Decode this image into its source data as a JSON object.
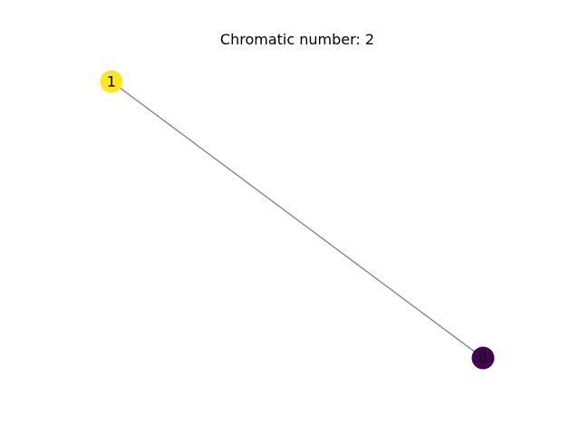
{
  "title": "Chromatic number: 2",
  "graph": {
    "nodes": [
      {
        "id": "0",
        "label": "0",
        "color": "#440154"
      },
      {
        "id": "1",
        "label": "1",
        "color": "#fde725"
      }
    ],
    "edges": [
      {
        "source": "1",
        "target": "0",
        "color": "#808080"
      }
    ]
  }
}
